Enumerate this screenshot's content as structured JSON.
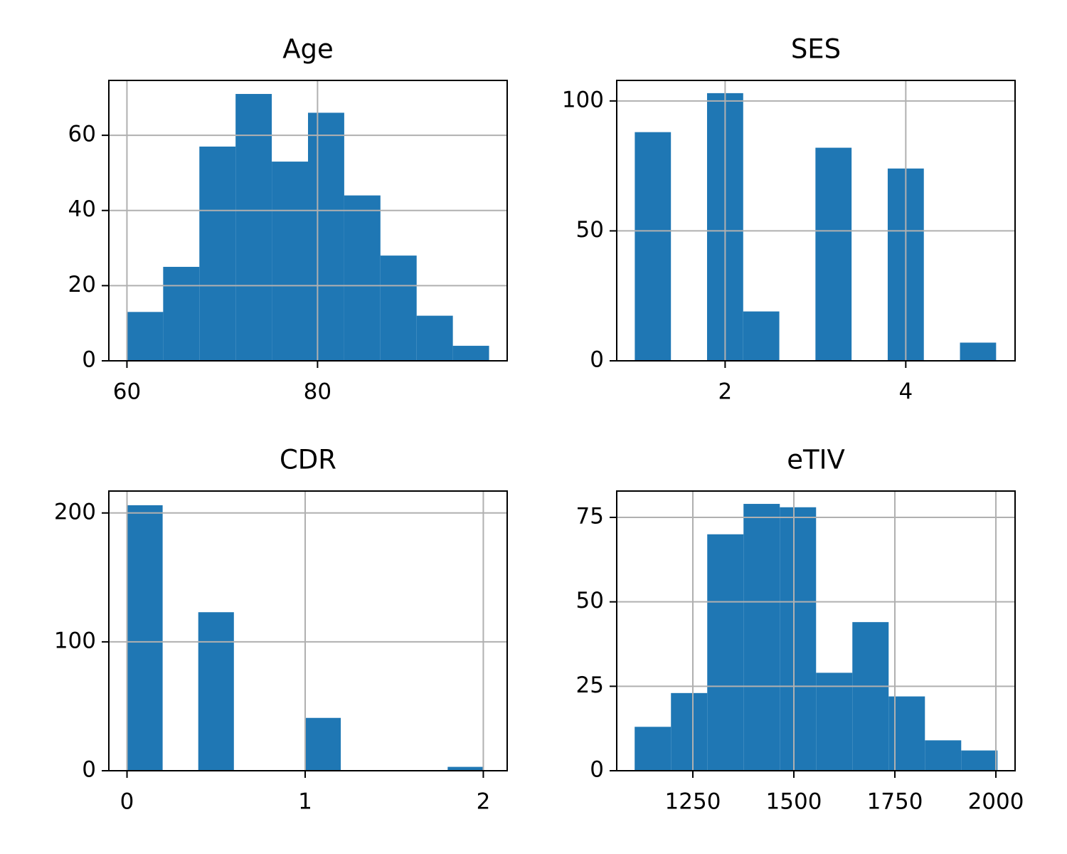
{
  "chart_data": [
    {
      "type": "histogram",
      "title": "Age",
      "color": "#1f77b4",
      "grid": true,
      "bins": [
        60,
        63.8,
        67.6,
        71.4,
        75.2,
        79,
        82.8,
        86.6,
        90.4,
        94.2,
        98
      ],
      "counts": [
        13,
        25,
        57,
        71,
        53,
        66,
        44,
        28,
        12,
        4
      ],
      "xlim": [
        58.1,
        99.9
      ],
      "xticks": [
        60,
        80
      ],
      "ylim": [
        0,
        74.6
      ],
      "yticks": [
        0,
        20,
        40,
        60
      ]
    },
    {
      "type": "histogram",
      "title": "SES",
      "color": "#1f77b4",
      "grid": true,
      "bins": [
        1,
        1.4,
        1.8,
        2.2,
        2.6,
        3,
        3.4,
        3.8,
        4.2,
        4.6,
        5
      ],
      "counts": [
        88,
        0,
        103,
        19,
        0,
        82,
        0,
        74,
        0,
        7
      ],
      "xlim": [
        0.8,
        5.21
      ],
      "xticks": [
        2,
        4
      ],
      "ylim": [
        0,
        107.9
      ],
      "yticks": [
        0,
        50,
        100
      ]
    },
    {
      "type": "histogram",
      "title": "CDR",
      "color": "#1f77b4",
      "grid": true,
      "bins": [
        0,
        0.2,
        0.4,
        0.6,
        0.8,
        1,
        1.2,
        1.4,
        1.6,
        1.8,
        2
      ],
      "counts": [
        206,
        0,
        123,
        0,
        0,
        41,
        0,
        0,
        0,
        3
      ],
      "xlim": [
        -0.102,
        2.134
      ],
      "xticks": [
        0,
        1,
        2
      ],
      "ylim": [
        0,
        217
      ],
      "yticks": [
        0,
        100,
        200
      ]
    },
    {
      "type": "histogram",
      "title": "eTIV",
      "color": "#1f77b4",
      "grid": true,
      "bins": [
        1106,
        1195.8,
        1285.6,
        1375.4,
        1465.2,
        1555,
        1644.8,
        1734.6,
        1824.4,
        1914.2,
        2004
      ],
      "counts": [
        13,
        23,
        70,
        79,
        78,
        29,
        44,
        22,
        9,
        6
      ],
      "xlim": [
        1061.6,
        2047.5
      ],
      "xticks": [
        1250,
        1500,
        1750,
        2000
      ],
      "ylim": [
        0,
        82.8
      ],
      "yticks": [
        0,
        25,
        50,
        75
      ]
    }
  ]
}
